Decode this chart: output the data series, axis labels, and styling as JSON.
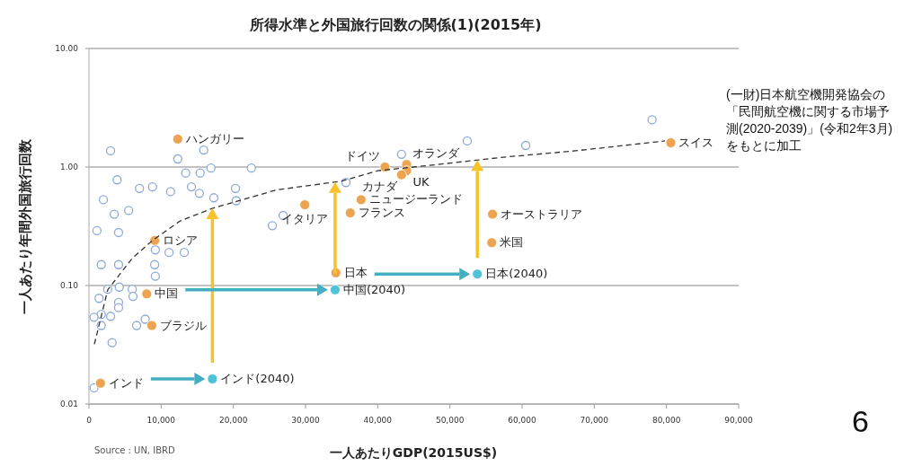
{
  "chart_data": {
    "type": "scatter",
    "title": "所得水準と外国旅行回数の関係(1)(2015年)",
    "xlabel": "一人あたりGDP(2015US$)",
    "ylabel": "一人あたり年間外国旅行回数",
    "log": "y",
    "grid": "y",
    "marker": "circle",
    "xlim": [
      0,
      90000
    ],
    "xticks": [
      0,
      {
        "value": 10000,
        "label": "10,000"
      },
      {
        "value": 20000,
        "label": "20,000"
      },
      {
        "value": 30000,
        "label": "30,000"
      },
      {
        "value": 40000,
        "label": "40,000"
      },
      {
        "value": 50000,
        "label": "50,000"
      },
      {
        "value": 60000,
        "label": "60,000"
      },
      {
        "value": 70000,
        "label": "70,000"
      },
      {
        "value": 80000,
        "label": "80,000"
      },
      {
        "value": 90000,
        "label": "90,000"
      }
    ],
    "ylim": [
      0.01,
      10
    ],
    "yticks": [
      {
        "value": 0.01,
        "label": "0.01"
      },
      {
        "value": 0.1,
        "label": "0.10"
      },
      {
        "value": 1,
        "label": "1.00"
      },
      {
        "value": 10,
        "label": "10.00"
      }
    ],
    "series": [
      {
        "color": "#8ea9d8",
        "x": [
          3000,
          12300,
          15900,
          13400,
          15400,
          16900,
          22500,
          3900,
          7000,
          8800,
          11300,
          14200,
          15300,
          17300,
          20300,
          20400,
          2000,
          3500,
          5500,
          1100,
          4100,
          9200,
          11100,
          13200,
          1700,
          4100,
          9100,
          9200,
          2600,
          4200,
          6000,
          1400,
          4100,
          6100,
          4100,
          3000,
          1700,
          700,
          1700,
          6600,
          7800,
          3200,
          700,
          25400,
          26900,
          35600,
          43300,
          52400,
          60500,
          78000
        ],
        "values": [
          1.37,
          1.17,
          1.39,
          0.89,
          0.89,
          0.98,
          0.98,
          0.78,
          0.66,
          0.68,
          0.62,
          0.68,
          0.6,
          0.55,
          0.66,
          0.52,
          0.53,
          0.4,
          0.43,
          0.29,
          0.28,
          0.2,
          0.19,
          0.19,
          0.15,
          0.15,
          0.15,
          0.12,
          0.093,
          0.097,
          0.093,
          0.078,
          0.072,
          0.081,
          0.065,
          0.055,
          0.057,
          0.054,
          0.046,
          0.046,
          0.052,
          0.033,
          0.0137,
          0.32,
          0.39,
          0.74,
          1.28,
          1.66,
          1.52,
          2.5
        ]
      },
      {
        "color": "#eda451",
        "x": [
          1600,
          8000,
          34200,
          12300,
          9100,
          8700,
          29900,
          36200,
          37700,
          41000,
          44000,
          44000,
          43300,
          55900,
          55800,
          80600
        ],
        "values": [
          0.015,
          0.085,
          0.128,
          1.72,
          0.24,
          0.046,
          0.48,
          0.41,
          0.53,
          1.0,
          1.05,
          0.93,
          0.86,
          0.4,
          0.23,
          1.6
        ]
      },
      {
        "color": "#4fc3d6",
        "x": [
          17100,
          34100,
          53800
        ],
        "values": [
          0.0163,
          0.092,
          0.125
        ]
      },
      {
        "type": "line",
        "color": "#333333",
        "line_style": "dashed",
        "marker": "none",
        "x": [
          750,
          2600,
          6000,
          8800,
          12600,
          17200,
          21300,
          25900,
          35000,
          40000,
          48300,
          57400,
          67400,
          79800
        ],
        "values": [
          0.032,
          0.092,
          0.17,
          0.24,
          0.35,
          0.45,
          0.53,
          0.64,
          0.76,
          0.93,
          1.05,
          1.21,
          1.37,
          1.66
        ]
      }
    ],
    "annotations": [
      {
        "text": "インド",
        "x": 1600,
        "y": 0.015
      },
      {
        "text": "中国",
        "x": 8000,
        "y": 0.085
      },
      {
        "text": "日本",
        "x": 34200,
        "y": 0.128
      },
      {
        "text": "ハンガリー",
        "x": 12300,
        "y": 1.72
      },
      {
        "text": "ロシア",
        "x": 9100,
        "y": 0.24
      },
      {
        "text": "ブラジル",
        "x": 8700,
        "y": 0.046
      },
      {
        "text": "イタリア",
        "x": 29900,
        "y": 0.48
      },
      {
        "text": "フランス",
        "x": 36200,
        "y": 0.41
      },
      {
        "text": "ニュージーランド",
        "x": 37700,
        "y": 0.53
      },
      {
        "text": "ドイツ",
        "x": 41000,
        "y": 1.0
      },
      {
        "text": "オランダ",
        "x": 44000,
        "y": 1.05
      },
      {
        "text": "UK",
        "x": 44000,
        "y": 0.93
      },
      {
        "text": "カナダ",
        "x": 43300,
        "y": 0.86
      },
      {
        "text": "オーストラリア",
        "x": 55900,
        "y": 0.4
      },
      {
        "text": "米国",
        "x": 55800,
        "y": 0.23
      },
      {
        "text": "スイス",
        "x": 80600,
        "y": 1.6
      },
      {
        "text": "インド(2040)",
        "x": 17100,
        "y": 0.0163
      },
      {
        "text": "中国(2040)",
        "x": 34100,
        "y": 0.092
      },
      {
        "text": "日本(2040)",
        "x": 53800,
        "y": 0.125
      },
      "Source : UN, IBRD",
      "(一財)日本航空機開発協会の「民間航空機に関する市場予測(2020-2039)」(令和2年3月)をもとに加工",
      "6"
    ]
  }
}
